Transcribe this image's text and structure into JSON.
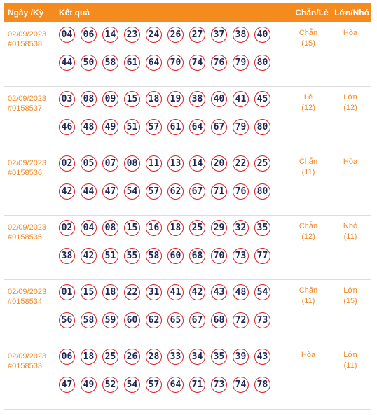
{
  "header": {
    "date_label": "Ngày /Kỳ",
    "result_label": "Kết quả",
    "chan_le_label": "Chẵn/Lẻ",
    "lon_nho_label": "Lớn/Nhỏ"
  },
  "rows": [
    {
      "date": "02/09/2023",
      "ky": "#0158538",
      "numbers": [
        "04",
        "06",
        "14",
        "23",
        "24",
        "26",
        "27",
        "37",
        "38",
        "40",
        "44",
        "50",
        "58",
        "61",
        "64",
        "70",
        "74",
        "76",
        "79",
        "80"
      ],
      "chan_le": "Chẵn",
      "chan_le_count": "(15)",
      "lon_nho": "Hòa",
      "lon_nho_count": ""
    },
    {
      "date": "02/09/2023",
      "ky": "#0158537",
      "numbers": [
        "03",
        "08",
        "09",
        "15",
        "18",
        "19",
        "38",
        "40",
        "41",
        "45",
        "46",
        "48",
        "49",
        "51",
        "57",
        "61",
        "64",
        "67",
        "79",
        "80"
      ],
      "chan_le": "Lẻ",
      "chan_le_count": "(12)",
      "lon_nho": "Lớn",
      "lon_nho_count": "(12)"
    },
    {
      "date": "02/09/2023",
      "ky": "#0158536",
      "numbers": [
        "02",
        "05",
        "07",
        "08",
        "11",
        "13",
        "14",
        "20",
        "22",
        "25",
        "42",
        "44",
        "47",
        "54",
        "57",
        "62",
        "67",
        "71",
        "76",
        "80"
      ],
      "chan_le": "Chẵn",
      "chan_le_count": "(11)",
      "lon_nho": "Hòa",
      "lon_nho_count": ""
    },
    {
      "date": "02/09/2023",
      "ky": "#0158535",
      "numbers": [
        "02",
        "04",
        "08",
        "15",
        "16",
        "18",
        "25",
        "29",
        "32",
        "35",
        "38",
        "42",
        "51",
        "55",
        "58",
        "60",
        "68",
        "70",
        "73",
        "77"
      ],
      "chan_le": "Chẵn",
      "chan_le_count": "(12)",
      "lon_nho": "Nhỏ",
      "lon_nho_count": "(11)"
    },
    {
      "date": "02/09/2023",
      "ky": "#0158534",
      "numbers": [
        "01",
        "15",
        "18",
        "22",
        "31",
        "41",
        "42",
        "43",
        "48",
        "54",
        "56",
        "58",
        "59",
        "60",
        "62",
        "65",
        "67",
        "68",
        "72",
        "73"
      ],
      "chan_le": "Chẵn",
      "chan_le_count": "(11)",
      "lon_nho": "Lớn",
      "lon_nho_count": "(15)"
    },
    {
      "date": "02/09/2023",
      "ky": "#0158533",
      "numbers": [
        "06",
        "18",
        "25",
        "26",
        "28",
        "33",
        "34",
        "35",
        "39",
        "43",
        "47",
        "49",
        "52",
        "54",
        "57",
        "64",
        "71",
        "73",
        "74",
        "78"
      ],
      "chan_le": "Hòa",
      "chan_le_count": "",
      "lon_nho": "Lớn",
      "lon_nho_count": "(11)"
    }
  ],
  "colors": {
    "header_bg": "#f58a1f",
    "accent_text": "#f08a2a",
    "ball_border": "#d81f26",
    "ball_text": "#1d2556"
  }
}
